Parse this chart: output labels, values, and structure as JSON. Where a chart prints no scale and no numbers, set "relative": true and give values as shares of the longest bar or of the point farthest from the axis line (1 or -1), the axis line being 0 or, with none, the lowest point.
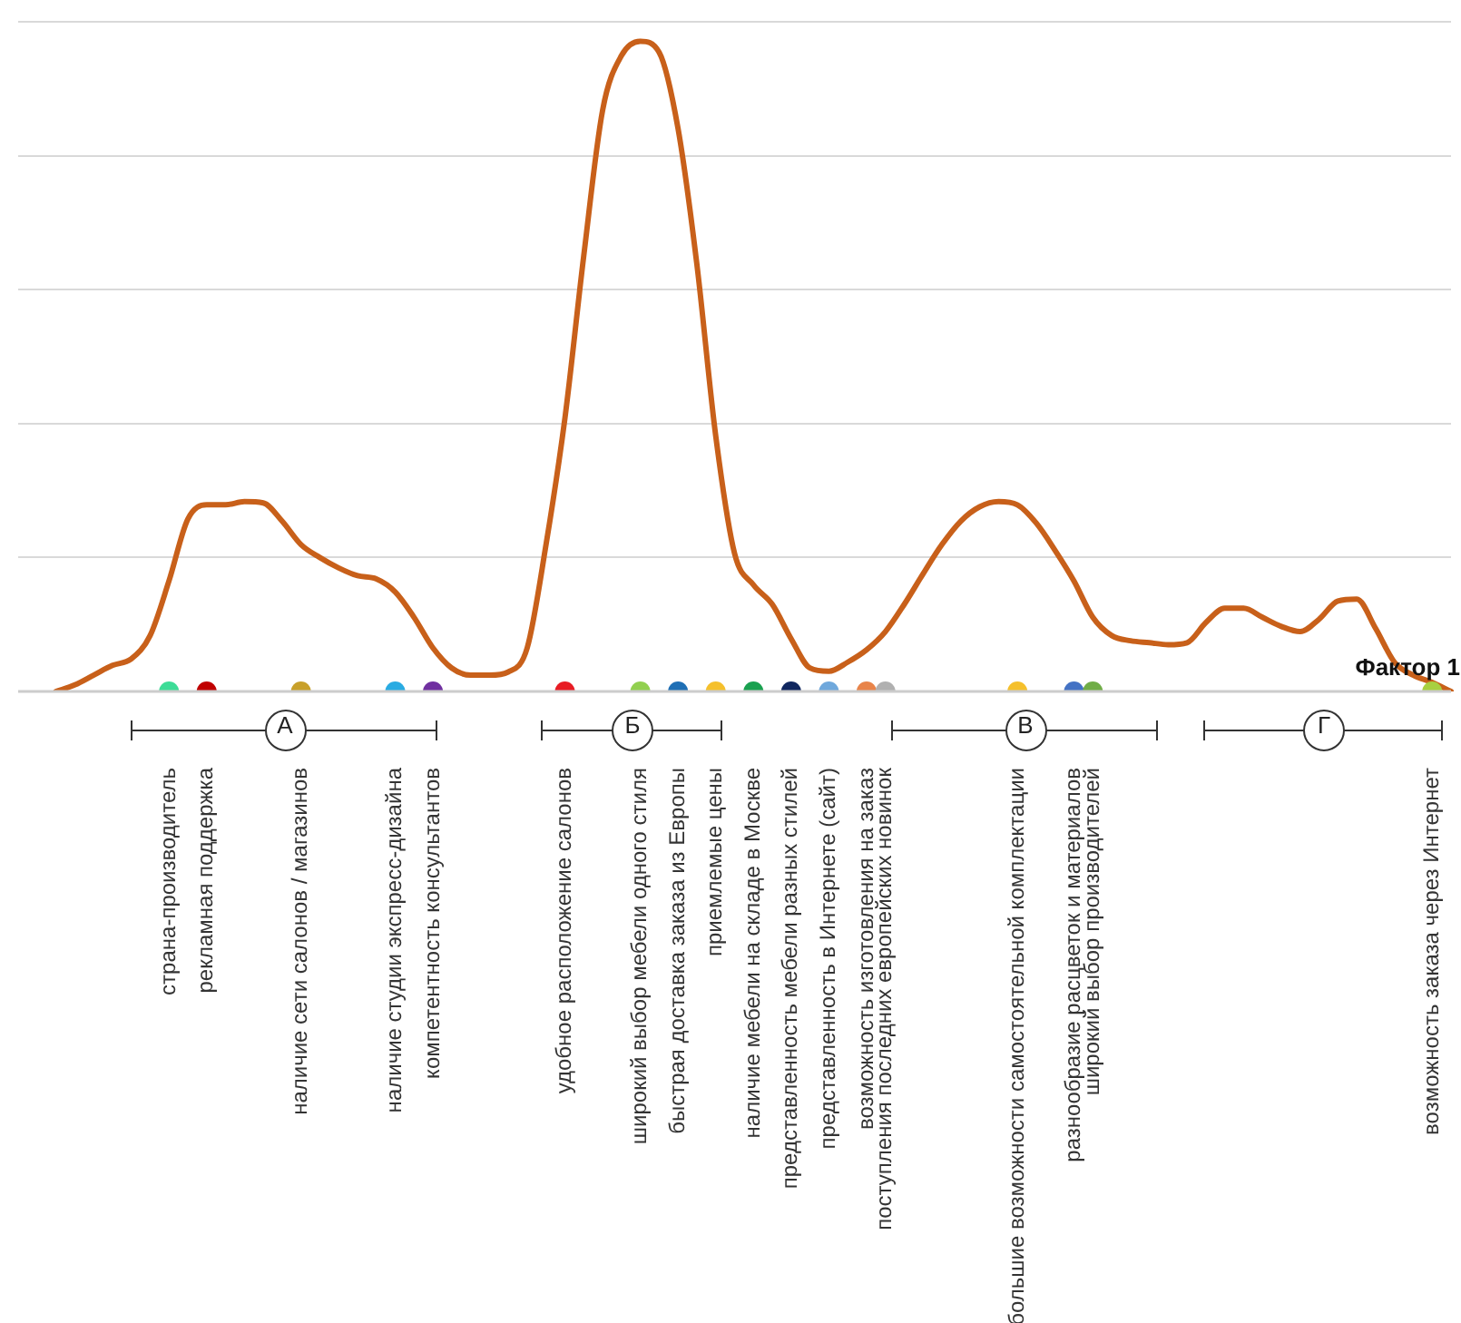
{
  "chart_data": {
    "type": "line",
    "relative": true,
    "xlabel": "Фактор 1",
    "grid": "y",
    "legend": false,
    "categories": [
      null,
      null,
      null,
      null,
      null,
      null,
      null,
      null,
      "страна-производитель",
      null,
      "рекламная поддержка",
      null,
      null,
      null,
      null,
      "наличие сети салонов / магазинов",
      null,
      null,
      null,
      null,
      "наличие студии экспресс-дизайна",
      null,
      "компетентность консультантов",
      null,
      null,
      null,
      null,
      null,
      null,
      "удобное расположение салонов",
      null,
      null,
      null,
      "широкий выбор мебели одного стиля",
      null,
      "быстрая доставка заказа из Европы",
      null,
      "приемлемые цены",
      null,
      "наличие мебели на складе в Москве",
      null,
      "представленность мебели разных стилей",
      null,
      "представленность в Интернете (сайт)",
      null,
      "возможность изготовления на заказ",
      "поступления последних европейских новинок",
      null,
      null,
      null,
      null,
      null,
      null,
      "большие возможности самостоятельной комплектации",
      null,
      null,
      "разнообразие расцветок и материалов",
      "широкий выбор производителей",
      null,
      null,
      null,
      null,
      null,
      null,
      null,
      null,
      null,
      null,
      null,
      null,
      null,
      null,
      null,
      null,
      null,
      "возможность заказа через Интернет",
      null
    ],
    "series": [
      {
        "color": "#c8601a",
        "marker": "none",
        "values": [
          null,
          null,
          0,
          0.01,
          0.025,
          0.04,
          0.05,
          0.086,
          0.17,
          0.265,
          0.287,
          0.287,
          0.292,
          0.29,
          0.262,
          0.226,
          0.206,
          0.19,
          0.178,
          0.173,
          0.153,
          0.114,
          0.067,
          0.036,
          0.025,
          0.025,
          0.03,
          0.067,
          0.226,
          0.42,
          0.67,
          0.894,
          0.978,
          1,
          0.983,
          0.866,
          0.657,
          0.393,
          0.212,
          0.164,
          0.134,
          0.081,
          0.036,
          0.031,
          0.045,
          0.064,
          0.092,
          0.134,
          0.181,
          0.226,
          0.262,
          0.284,
          0.292,
          0.287,
          0.259,
          0.217,
          0.17,
          0.114,
          0.086,
          0.078,
          0.075,
          0.072,
          0.075,
          0.106,
          0.128,
          0.128,
          0.114,
          0.1,
          0.092,
          0.111,
          0.139,
          0.142,
          0.097,
          0.045,
          0.025,
          0.014,
          0
        ]
      },
      {
        "type": "scatter",
        "marker": "circle",
        "colors": [
          null,
          null,
          null,
          null,
          null,
          null,
          null,
          null,
          "#3ddc97",
          null,
          "#c00000",
          null,
          null,
          null,
          null,
          "#c8a02a",
          null,
          null,
          null,
          null,
          "#29abe2",
          null,
          "#7030a0",
          null,
          null,
          null,
          null,
          null,
          null,
          "#e81c24",
          null,
          null,
          null,
          "#92d050",
          null,
          "#1f6fb5",
          null,
          "#f5c02c",
          null,
          "#1aa150",
          null,
          "#10275f",
          null,
          "#6fa8dc",
          null,
          "#e8844a",
          "#b0b0b0",
          null,
          null,
          null,
          null,
          null,
          null,
          "#f5c02c",
          null,
          null,
          "#4472c4",
          "#70ad47",
          null,
          null,
          null,
          null,
          null,
          null,
          null,
          null,
          null,
          null,
          null,
          null,
          null,
          null,
          null,
          null,
          null,
          "#a8d040",
          null
        ],
        "values": [
          null,
          null,
          null,
          null,
          null,
          null,
          null,
          null,
          0,
          null,
          0,
          null,
          null,
          null,
          null,
          0,
          null,
          null,
          null,
          null,
          0,
          null,
          0,
          null,
          null,
          null,
          null,
          null,
          null,
          0,
          null,
          null,
          null,
          0,
          null,
          0,
          null,
          0,
          null,
          0,
          null,
          0,
          null,
          0,
          null,
          0,
          0,
          null,
          null,
          null,
          null,
          null,
          null,
          0,
          null,
          null,
          0,
          0,
          null,
          null,
          null,
          null,
          null,
          null,
          null,
          null,
          null,
          null,
          null,
          null,
          null,
          null,
          null,
          null,
          null,
          0,
          null
        ]
      }
    ],
    "annotations": [
      "А",
      "Б",
      "В",
      "Г"
    ]
  }
}
